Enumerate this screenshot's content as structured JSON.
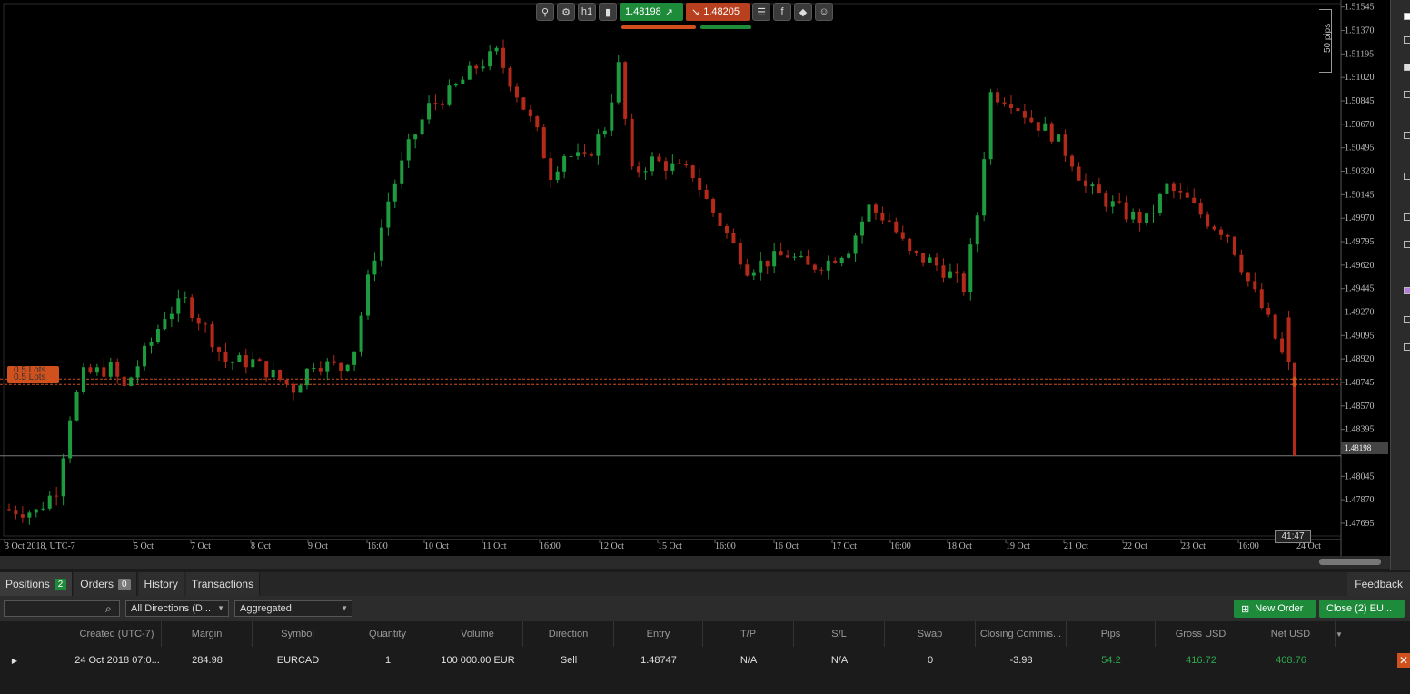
{
  "toolbar": {
    "buy_price": "1.48198",
    "sell_price": "1.48205",
    "icons": [
      "zoom-icon",
      "settings-icon",
      "timeframe-icon",
      "candles-icon",
      "list-icon",
      "facebook-icon",
      "tag-icon",
      "person-icon"
    ],
    "timeframe": "h1",
    "buy_color": "#1e8b3a",
    "sell_color": "#b8401e"
  },
  "chart": {
    "pips_label": "50 pips",
    "lots_label_1": "0.5 Lots",
    "lots_label_2": "0.5 Lots",
    "current_price": "1.48198",
    "countdown": "41:47"
  },
  "chart_data": {
    "type": "candlestick",
    "symbol": "EURCAD",
    "y_axis_ticks": [
      "1.51545",
      "1.51370",
      "1.51195",
      "1.51020",
      "1.50845",
      "1.50670",
      "1.50495",
      "1.50320",
      "1.50145",
      "1.49970",
      "1.49795",
      "1.49620",
      "1.49445",
      "1.49270",
      "1.49095",
      "1.48920",
      "1.48745",
      "1.48570",
      "1.48395",
      "1.48198",
      "1.48045",
      "1.47870",
      "1.47695"
    ],
    "x_axis_ticks": [
      "3 Oct 2018, UTC-7",
      "5 Oct",
      "7 Oct",
      "8 Oct",
      "9 Oct",
      "16:00",
      "10 Oct",
      "11 Oct",
      "16:00",
      "12 Oct",
      "15 Oct",
      "16:00",
      "16 Oct",
      "17 Oct",
      "16:00",
      "18 Oct",
      "19 Oct",
      "21 Oct",
      "22 Oct",
      "23 Oct",
      "16:00",
      "24 Oct"
    ],
    "ylim": [
      1.476,
      1.5157
    ],
    "entry_lines": [
      1.4877,
      1.4873
    ],
    "current_price": 1.48198,
    "path_keypoints": [
      [
        0,
        1.478
      ],
      [
        5,
        1.4778
      ],
      [
        8,
        1.4795
      ],
      [
        10,
        1.485
      ],
      [
        12,
        1.488
      ],
      [
        16,
        1.4885
      ],
      [
        18,
        1.487
      ],
      [
        22,
        1.4905
      ],
      [
        24,
        1.4925
      ],
      [
        27,
        1.4935
      ],
      [
        30,
        1.4915
      ],
      [
        33,
        1.489
      ],
      [
        37,
        1.489
      ],
      [
        40,
        1.488
      ],
      [
        43,
        1.487
      ],
      [
        46,
        1.489
      ],
      [
        50,
        1.4885
      ],
      [
        52,
        1.49
      ],
      [
        54,
        1.495
      ],
      [
        57,
        1.501
      ],
      [
        60,
        1.505
      ],
      [
        63,
        1.508
      ],
      [
        66,
        1.509
      ],
      [
        70,
        1.511
      ],
      [
        73,
        1.512
      ],
      [
        76,
        1.509
      ],
      [
        79,
        1.506
      ],
      [
        81,
        1.503
      ],
      [
        83,
        1.5045
      ],
      [
        86,
        1.504
      ],
      [
        89,
        1.5065
      ],
      [
        91,
        1.511
      ],
      [
        93,
        1.503
      ],
      [
        96,
        1.504
      ],
      [
        99,
        1.5035
      ],
      [
        102,
        1.503
      ],
      [
        104,
        1.501
      ],
      [
        107,
        1.4985
      ],
      [
        110,
        1.496
      ],
      [
        113,
        1.4965
      ],
      [
        116,
        1.497
      ],
      [
        119,
        1.496
      ],
      [
        122,
        1.4965
      ],
      [
        125,
        1.4975
      ],
      [
        128,
        1.5005
      ],
      [
        131,
        1.4995
      ],
      [
        134,
        1.497
      ],
      [
        137,
        1.4965
      ],
      [
        140,
        1.4955
      ],
      [
        142,
        1.4945
      ],
      [
        144,
        1.5
      ],
      [
        146,
        1.509
      ],
      [
        149,
        1.5085
      ],
      [
        152,
        1.507
      ],
      [
        155,
        1.506
      ],
      [
        158,
        1.504
      ],
      [
        160,
        1.502
      ],
      [
        163,
        1.501
      ],
      [
        166,
        1.5
      ],
      [
        169,
        1.4995
      ],
      [
        172,
        1.502
      ],
      [
        175,
        1.501
      ],
      [
        178,
        1.4995
      ],
      [
        181,
        1.4985
      ],
      [
        184,
        1.495
      ],
      [
        187,
        1.492
      ],
      [
        189,
        1.4895
      ]
    ]
  },
  "rail_icons": [
    "arrow-icon",
    "crosshair-icon",
    "line-icon",
    "trend-icon",
    "channel-icon",
    "fib-icon",
    "rect-icon",
    "text-icon",
    "camera-icon",
    "alert-icon"
  ],
  "tabs": [
    {
      "label": "Positions",
      "count": "2",
      "count_color": "#1e8b3a"
    },
    {
      "label": "Orders",
      "count": "0",
      "count_color": "#777777"
    },
    {
      "label": "History",
      "count": "",
      "count_color": ""
    },
    {
      "label": "Transactions",
      "count": "",
      "count_color": ""
    }
  ],
  "feedback_label": "Feedback",
  "filters": {
    "search_placeholder": "",
    "direction": "All Directions (D...",
    "grouping": "Aggregated"
  },
  "actions": {
    "new_order": "New Order",
    "close_all": "Close (2) EU..."
  },
  "table": {
    "columns": [
      "Created  (UTC-7)",
      "Margin",
      "Symbol",
      "Quantity",
      "Volume",
      "Direction",
      "Entry",
      "T/P",
      "S/L",
      "Swap",
      "Closing Commis...",
      "Pips",
      "Gross USD",
      "Net USD"
    ],
    "rows": [
      {
        "created": "24 Oct 2018 07:0...",
        "margin": "284.98",
        "symbol": "EURCAD",
        "quantity": "1",
        "volume": "100 000.00 EUR",
        "direction": "Sell",
        "entry": "1.48747",
        "tp": "N/A",
        "sl": "N/A",
        "swap": "0",
        "closing_commission": "-3.98",
        "pips": "54.2",
        "gross": "416.72",
        "net": "408.76"
      }
    ]
  }
}
